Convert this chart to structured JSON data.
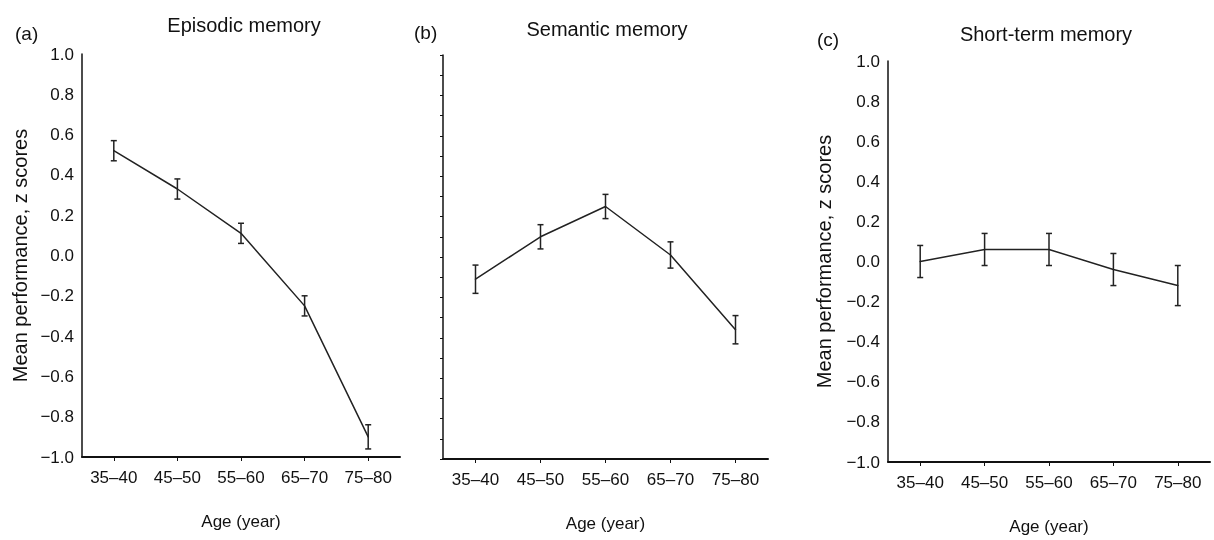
{
  "chart_data": [
    {
      "type": "line",
      "title": "Episodic memory",
      "xlabel": "Age (year)",
      "ylabel": "Mean performance, z scores",
      "annotations": [
        "(a)"
      ],
      "categories": [
        "35–40",
        "45–50",
        "55–60",
        "65–70",
        "75–80"
      ],
      "series": [
        {
          "color": "#222222",
          "values": [
            0.52,
            0.33,
            0.11,
            -0.25,
            -0.9
          ],
          "errors": [
            0.05,
            0.05,
            0.05,
            0.05,
            0.06
          ]
        }
      ],
      "ylim": [
        -1,
        1
      ],
      "yticks": [
        {
          "value": -1,
          "label": "−1.0"
        },
        {
          "value": -0.8,
          "label": "−0.8"
        },
        {
          "value": -0.6,
          "label": "−0.6"
        },
        {
          "value": -0.4,
          "label": "−0.4"
        },
        {
          "value": -0.2,
          "label": "−0.2"
        },
        {
          "value": 0,
          "label": "0.0"
        },
        {
          "value": 0.2,
          "label": "0.2"
        },
        {
          "value": 0.4,
          "label": "0.4"
        },
        {
          "value": 0.6,
          "label": "0.6"
        },
        {
          "value": 0.8,
          "label": "0.8"
        },
        {
          "value": 1,
          "label": "1.0"
        }
      ]
    },
    {
      "type": "line",
      "title": "Semantic memory",
      "xlabel": "Age (year)",
      "annotations": [
        "(b)"
      ],
      "categories": [
        "35–40",
        "45–50",
        "55–60",
        "65–70",
        "75–80"
      ],
      "series": [
        {
          "color": "#222222",
          "values": [
            -0.11,
            0.1,
            0.25,
            0.01,
            -0.36
          ],
          "errors": [
            0.07,
            0.06,
            0.06,
            0.065,
            0.07
          ]
        }
      ],
      "ylim": [
        -1,
        1
      ],
      "yticks": [
        {
          "value": -1,
          "label": null
        },
        {
          "value": -0.9,
          "label": null
        },
        {
          "value": -0.8,
          "label": null
        },
        {
          "value": -0.7,
          "label": null
        },
        {
          "value": -0.6,
          "label": null
        },
        {
          "value": -0.5,
          "label": null
        },
        {
          "value": -0.4,
          "label": null
        },
        {
          "value": -0.3,
          "label": null
        },
        {
          "value": -0.2,
          "label": null
        },
        {
          "value": -0.1,
          "label": null
        },
        {
          "value": 0,
          "label": null
        },
        {
          "value": 0.1,
          "label": null
        },
        {
          "value": 0.2,
          "label": null
        },
        {
          "value": 0.3,
          "label": null
        },
        {
          "value": 0.4,
          "label": null
        },
        {
          "value": 0.5,
          "label": null
        },
        {
          "value": 0.6,
          "label": null
        },
        {
          "value": 0.7,
          "label": null
        },
        {
          "value": 0.8,
          "label": null
        },
        {
          "value": 0.9,
          "label": null
        },
        {
          "value": 1,
          "label": null
        }
      ],
      "tick_labels": "x"
    },
    {
      "type": "line",
      "title": "Short-term memory",
      "xlabel": "Age (year)",
      "ylabel": "Mean performance, z scores",
      "annotations": [
        "(c)"
      ],
      "categories": [
        "35–40",
        "45–50",
        "55–60",
        "65–70",
        "75–80"
      ],
      "series": [
        {
          "color": "#222222",
          "values": [
            0,
            0.06,
            0.06,
            -0.04,
            -0.12
          ],
          "errors": [
            0.08,
            0.08,
            0.08,
            0.08,
            0.1
          ]
        }
      ],
      "ylim": [
        -1,
        1
      ],
      "yticks": [
        {
          "value": -1,
          "label": "−1.0"
        },
        {
          "value": -0.8,
          "label": "−0.8"
        },
        {
          "value": -0.6,
          "label": "−0.6"
        },
        {
          "value": -0.4,
          "label": "−0.4"
        },
        {
          "value": -0.2,
          "label": "−0.2"
        },
        {
          "value": 0,
          "label": "0.0"
        },
        {
          "value": 0.2,
          "label": "0.2"
        },
        {
          "value": 0.4,
          "label": "0.4"
        },
        {
          "value": 0.6,
          "label": "0.6"
        },
        {
          "value": 0.8,
          "label": "0.8"
        },
        {
          "value": 1,
          "label": "1.0"
        }
      ]
    }
  ]
}
